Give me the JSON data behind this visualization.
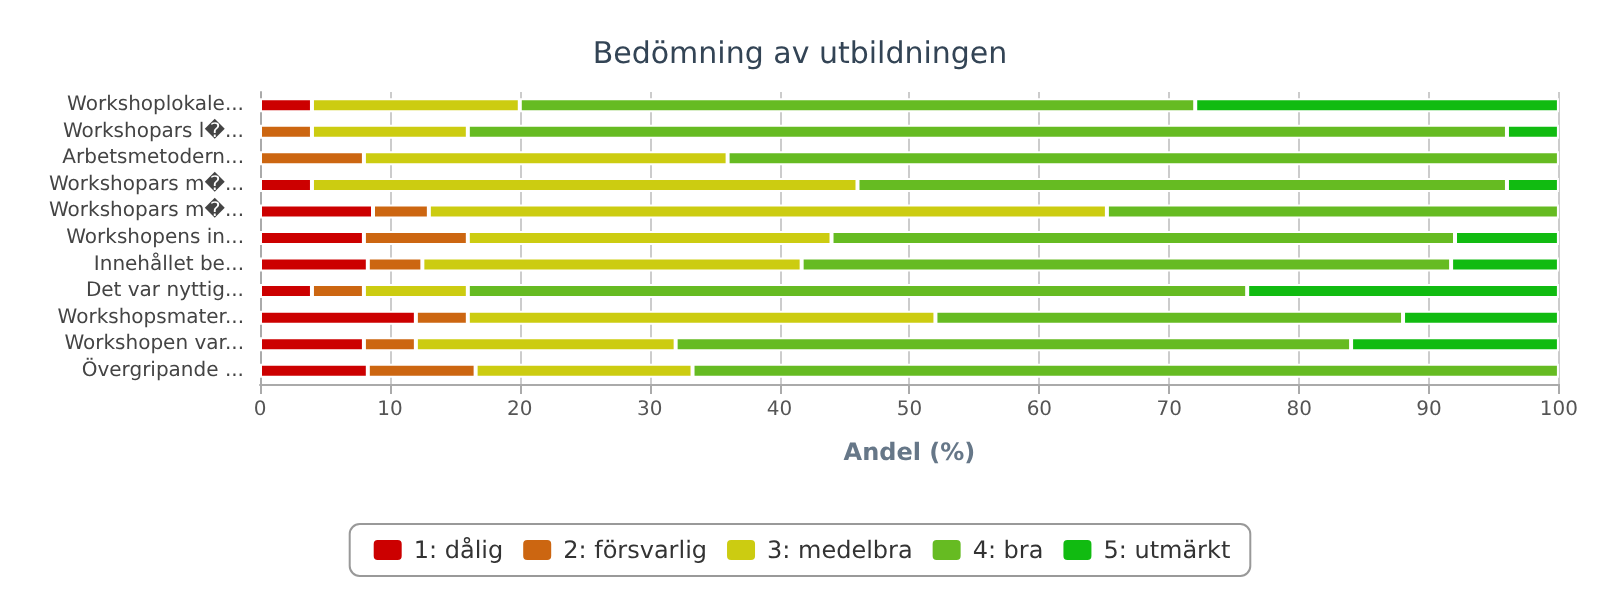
{
  "chart_data": {
    "type": "bar",
    "orientation": "horizontal",
    "stacked": true,
    "title": "Bedömning av utbildningen",
    "xlabel": "Andel (%)",
    "categories": [
      "Workshoplokale...",
      "Workshopars l�...",
      "Arbetsmetodern...",
      "Workshopars m�...",
      "Workshopars m�...",
      "Workshopens in...",
      "Innehållet be...",
      "Det var nyttig...",
      "Workshopsmater...",
      "Workshopen var...",
      "Övergripande ..."
    ],
    "series": [
      {
        "name": "1: dålig",
        "color": "#cc0000",
        "values": [
          4,
          0,
          0,
          4,
          8.7,
          8,
          8.3,
          4,
          12,
          8,
          8.3
        ]
      },
      {
        "name": "2: försvarlig",
        "color": "#cc6611",
        "values": [
          0,
          4,
          8,
          0,
          4.3,
          8,
          4.2,
          4,
          4,
          4,
          8.3
        ]
      },
      {
        "name": "3: medelbra",
        "color": "#cccc11",
        "values": [
          16,
          12,
          28,
          42,
          52.2,
          28,
          29.2,
          8,
          36,
          20,
          16.7
        ]
      },
      {
        "name": "4: bra",
        "color": "#66bb22",
        "values": [
          52,
          80,
          64,
          50,
          34.8,
          48,
          50,
          60,
          36,
          52,
          66.7
        ]
      },
      {
        "name": "5: utmärkt",
        "color": "#11bb11",
        "values": [
          28,
          4,
          0,
          4,
          0,
          8,
          8.3,
          24,
          12,
          16,
          0
        ]
      }
    ],
    "xlim": [
      0,
      100
    ],
    "xticks": [
      0,
      10,
      20,
      30,
      40,
      50,
      60,
      70,
      80,
      90,
      100
    ],
    "grid": "x",
    "legend": "bottom"
  }
}
